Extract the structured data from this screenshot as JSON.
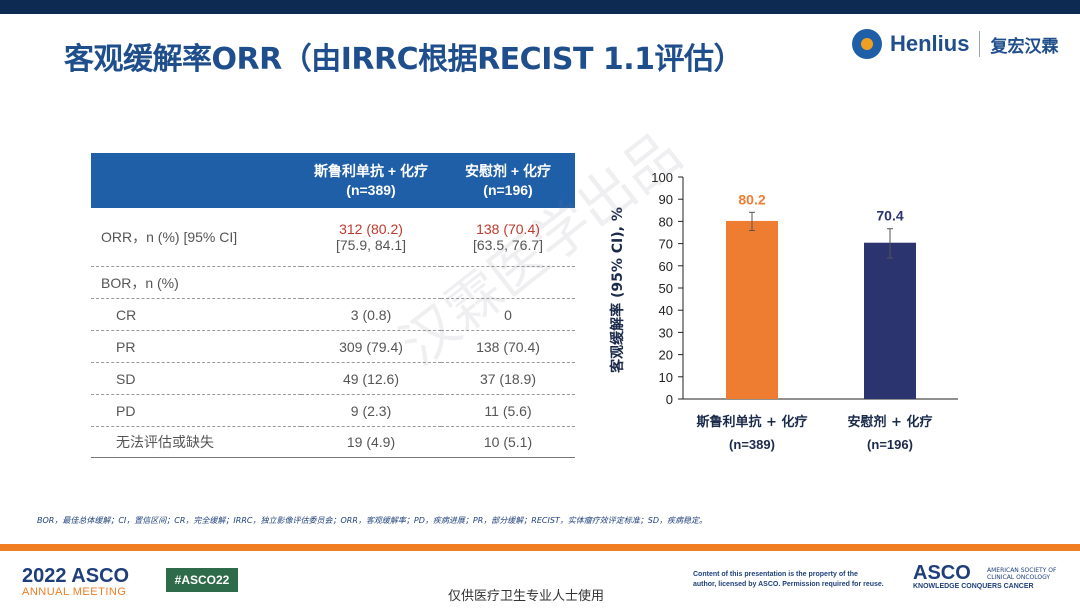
{
  "header": {
    "title": "客观缓解率ORR（由IRRC根据RECIST 1.1评估）",
    "logo_en": "Henlius",
    "logo_cn": "复宏汉霖"
  },
  "table": {
    "col1_header_line1": "斯鲁利单抗 + 化疗",
    "col1_header_line2": "(n=389)",
    "col2_header_line1": "安慰剂 + 化疗",
    "col2_header_line2": "(n=196)",
    "rows": [
      {
        "label": "ORR，n (%) [95% CI]",
        "v1": "312 (80.2)",
        "v1_ci": "[75.9, 84.1]",
        "v2": "138 (70.4)",
        "v2_ci": "[63.5, 76.7]"
      },
      {
        "label": "BOR，n (%)",
        "v1": "",
        "v2": ""
      },
      {
        "label": "CR",
        "v1": "3 (0.8)",
        "v2": "0"
      },
      {
        "label": "PR",
        "v1": "309 (79.4)",
        "v2": "138 (70.4)"
      },
      {
        "label": "SD",
        "v1": "49 (12.6)",
        "v2": "37 (18.9)"
      },
      {
        "label": "PD",
        "v1": "9 (2.3)",
        "v2": "11 (5.6)"
      },
      {
        "label": "无法评估或缺失",
        "v1": "19 (4.9)",
        "v2": "10 (5.1)"
      }
    ]
  },
  "chart_data": {
    "type": "bar",
    "categories": [
      "斯鲁利单抗 + 化疗",
      "安慰剂 + 化疗"
    ],
    "category_sublabels": [
      "(n=389)",
      "(n=196)"
    ],
    "values": [
      80.2,
      70.4
    ],
    "value_labels": [
      "80.2",
      "70.4"
    ],
    "error_low": [
      75.9,
      63.5
    ],
    "error_high": [
      84.1,
      76.7
    ],
    "colors": [
      "#ef7d31",
      "#2c3470"
    ],
    "label_colors": [
      "#ef7d31",
      "#2c3470"
    ],
    "ylabel": "客观缓解率 (95% CI), %",
    "ylim": [
      0,
      100
    ],
    "yticks": [
      0,
      10,
      20,
      30,
      40,
      50,
      60,
      70,
      80,
      90,
      100
    ]
  },
  "footnote": "BOR，最佳总体缓解；CI，置信区间；CR，完全缓解；IRRC，独立影像评估委员会；ORR，客观缓解率；PD，疾病进展；PR，部分缓解；RECIST，实体瘤疗效评定标准；SD，疾病稳定。",
  "footer": {
    "asco_year": "2022 ASCO",
    "asco_meeting": "ANNUAL MEETING",
    "hashtag": "#ASCO22",
    "usage_note": "仅供医疗卫生专业人士使用",
    "rights_line1": "Content of this presentation is the property of the",
    "rights_line2": "author, licensed by ASCO. Permission required for reuse.",
    "asco_logo": "ASCO",
    "asco_society": "AMERICAN SOCIETY OF CLINICAL ONCOLOGY",
    "asco_tagline": "KNOWLEDGE CONQUERS CANCER"
  },
  "watermark": "汉霖医学出品"
}
